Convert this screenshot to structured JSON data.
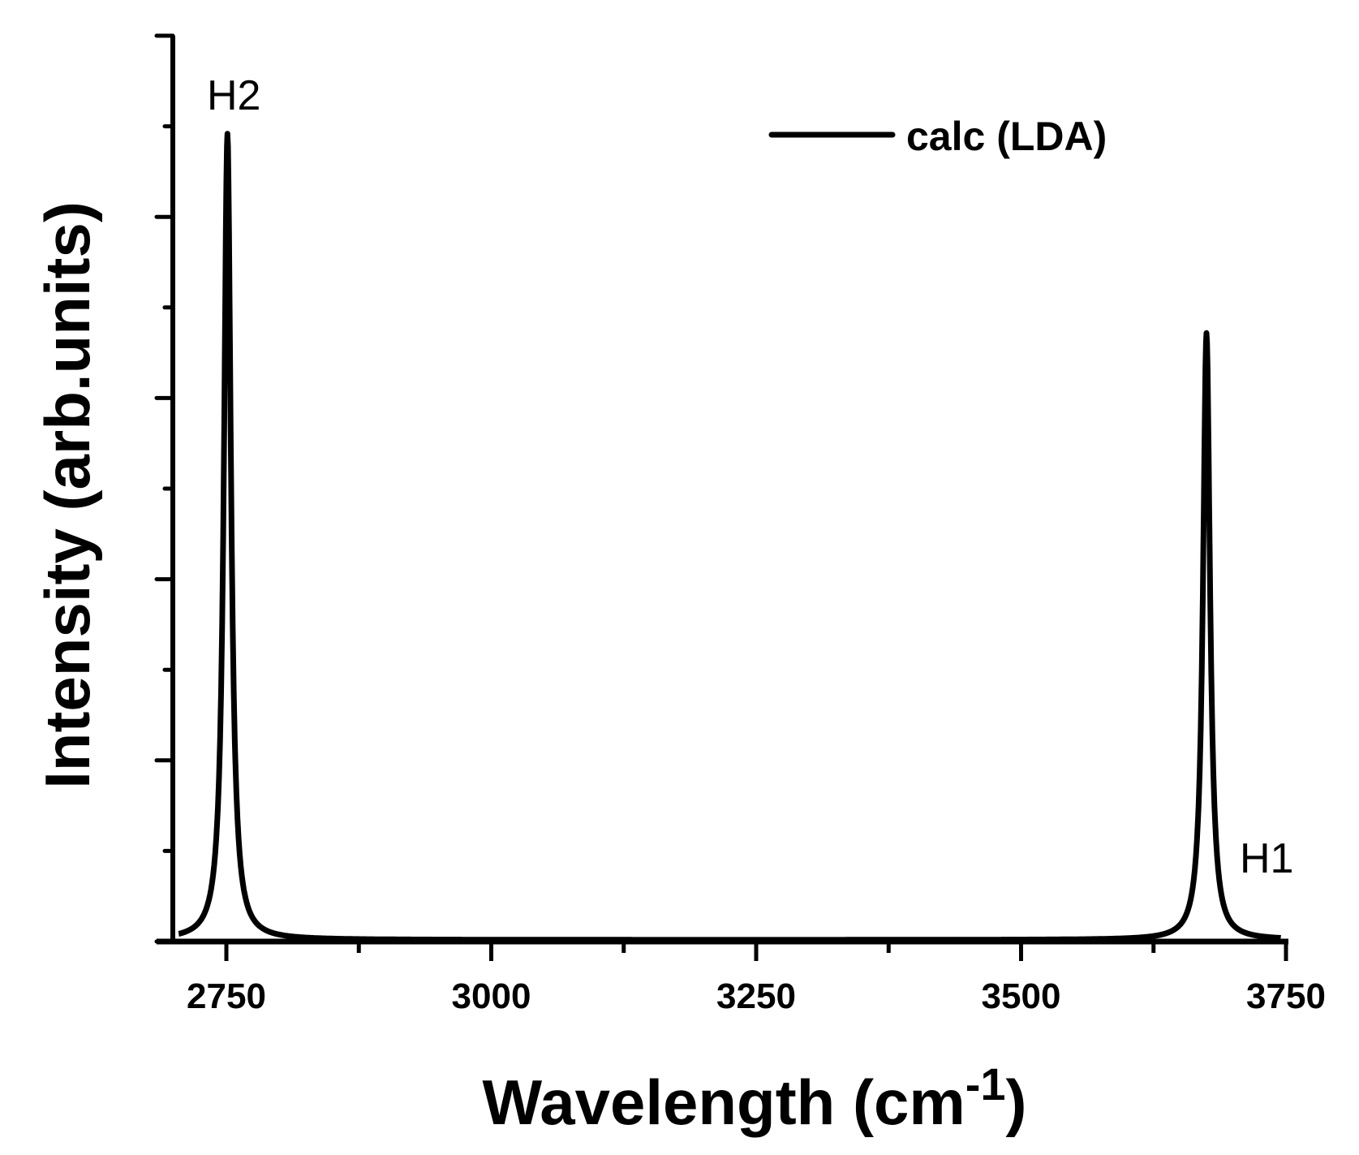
{
  "chart_data": {
    "type": "line",
    "title": "",
    "xlabel": "Wavelength (cm-1)",
    "xlabel_main": "Wavelength (cm",
    "xlabel_sup": "-1",
    "xlabel_close": ")",
    "ylabel": "Intensity (arb.units)",
    "xlim": [
      2700,
      3750
    ],
    "ylim": [
      0,
      1.0
    ],
    "x_ticks": [
      2750,
      3000,
      3250,
      3500,
      3750
    ],
    "x_tick_labels": [
      "2750",
      "3000",
      "3250",
      "3500",
      "3750"
    ],
    "x_minor_ticks": [
      2875,
      3125,
      3375,
      3625
    ],
    "y_tick_labels_shown": false,
    "y_major_ticks": [
      0,
      0.2,
      0.4,
      0.6,
      0.8,
      1.0
    ],
    "y_minor_ticks": [
      0.1,
      0.3,
      0.5,
      0.7,
      0.9
    ],
    "grid": false,
    "legend": {
      "position": "upper-right",
      "entries": [
        "calc (LDA)"
      ]
    },
    "series": [
      {
        "name": "calc (LDA)",
        "color": "#000000",
        "shape": "lorentzian",
        "peaks": [
          {
            "label": "H2",
            "center": 2751,
            "height": 0.89,
            "fwhm": 8
          },
          {
            "label": "H1",
            "center": 3675,
            "height": 0.67,
            "fwhm": 8
          }
        ]
      }
    ],
    "annotations": [
      {
        "text": "H2",
        "x": 2760,
        "y": 0.94
      },
      {
        "text": "H1",
        "x": 3720,
        "y": 0.09
      }
    ]
  },
  "labels": {
    "legend": "calc (LDA)",
    "peak_h2": "H2",
    "peak_h1": "H1",
    "y_title": "Intensity (arb.units)",
    "x_title_main": "Wavelength (cm",
    "x_title_sup": "-1",
    "x_title_close": ")"
  }
}
